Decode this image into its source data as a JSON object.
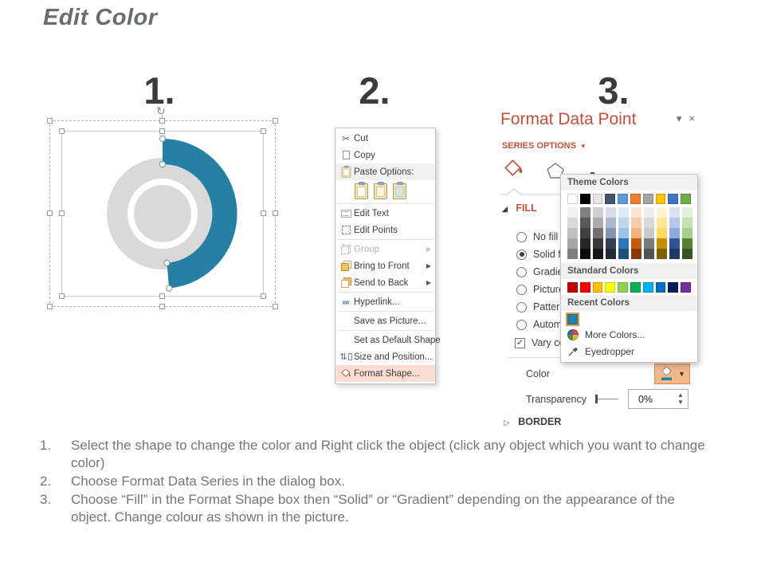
{
  "title": "Edit Color",
  "steps": {
    "n1": "1.",
    "n2": "2.",
    "n3": "3."
  },
  "icons": {
    "rotate": "↻",
    "scissors": "✂",
    "submenu": "▶",
    "dropdown": "▾",
    "close": "×",
    "series_dropdown": "▼",
    "fill_expanded": "◢",
    "border_collapsed": "▷",
    "check": "✓",
    "spin_up": "▲",
    "spin_down": "▼",
    "hyperlink_glyph": "∞",
    "updown_glyph": "⇅",
    "button_dropdown": "▼"
  },
  "context_menu": {
    "items": [
      {
        "label": "Cut",
        "icon": "scissors-icon"
      },
      {
        "label": "Copy",
        "icon": "copy-icon"
      },
      {
        "label": "Paste Options:",
        "icon": "clipboard-icon"
      },
      {
        "label": "Edit Text",
        "icon": "edit-text-icon"
      },
      {
        "label": "Edit Points",
        "icon": "edit-points-icon"
      },
      {
        "label": "Group",
        "icon": "group-icon",
        "disabled": true,
        "submenu": true
      },
      {
        "label": "Bring to Front",
        "icon": "bring-to-front-icon",
        "submenu": true
      },
      {
        "label": "Send to Back",
        "icon": "send-to-back-icon",
        "submenu": true
      },
      {
        "label": "Hyperlink...",
        "icon": "hyperlink-icon"
      },
      {
        "label": "Save as Picture..."
      },
      {
        "label": "Set as Default Shape"
      },
      {
        "label": "Size and Position...",
        "icon": "size-position-icon"
      },
      {
        "label": "Format Shape...",
        "icon": "paint-bucket-icon",
        "highlighted": true
      }
    ]
  },
  "format_panel": {
    "title": "Format Data Point",
    "series_options": "SERIES OPTIONS",
    "fill_header": "FILL",
    "border_header": "BORDER",
    "options": [
      "No fill",
      "Solid fill",
      "Gradient fill",
      "Picture or texture fill",
      "Pattern fill",
      "Automatic"
    ],
    "selected_option": "Solid fill",
    "vary_label": "Vary colors by point",
    "vary_checked": true,
    "color_label": "Color",
    "transparency_label": "Transparency",
    "transparency_value": "0%"
  },
  "color_popup": {
    "theme_header": "Theme Colors",
    "standard_header": "Standard Colors",
    "recent_header": "Recent Colors",
    "more_colors_label": "More Colors...",
    "eyedropper_label": "Eyedropper",
    "theme_colors": [
      "#FFFFFF",
      "#000000",
      "#E7E6E6",
      "#44546A",
      "#5B9BD5",
      "#ED7D31",
      "#A5A5A5",
      "#FFC000",
      "#4472C4",
      "#70AD47"
    ],
    "theme_variants": [
      [
        "#F2F2F2",
        "#D9D9D9",
        "#BFBFBF",
        "#A6A6A6",
        "#808080"
      ],
      [
        "#808080",
        "#595959",
        "#404040",
        "#262626",
        "#0D0D0D"
      ],
      [
        "#D0CECE",
        "#AEAAAA",
        "#757171",
        "#3A3838",
        "#171616"
      ],
      [
        "#D6DCE5",
        "#ACB9CA",
        "#8497B0",
        "#333F50",
        "#222B35"
      ],
      [
        "#DEEBF7",
        "#BDD7EE",
        "#9DC3E6",
        "#2E75B6",
        "#1F4E79"
      ],
      [
        "#FBE5D6",
        "#F8CBAD",
        "#F4B183",
        "#C55A11",
        "#843C0C"
      ],
      [
        "#EDEDED",
        "#DBDBDB",
        "#C9C9C9",
        "#7B7B7B",
        "#525252"
      ],
      [
        "#FFF2CC",
        "#FFE699",
        "#FFD966",
        "#BF9000",
        "#7F6000"
      ],
      [
        "#D9E2F3",
        "#B4C7E7",
        "#8EAADB",
        "#2F5496",
        "#1F3864"
      ],
      [
        "#E2EFD9",
        "#C5E0B3",
        "#A8D08D",
        "#538135",
        "#385623"
      ]
    ],
    "standard_colors": [
      "#C00000",
      "#FF0000",
      "#FFC000",
      "#FFFF00",
      "#92D050",
      "#00B050",
      "#00B0F0",
      "#0070C0",
      "#002060",
      "#7030A0"
    ],
    "recent_colors": [
      "#2580A4"
    ]
  },
  "donut": {
    "accent_color": "#2580A4",
    "ring_color": "#D9D9D9"
  },
  "colors": {
    "panel_title_red": "#C0503C",
    "menu_highlight": "#FBDCD2",
    "color_button_bg": "#F4B88F",
    "color_button_border": "#DD8A55",
    "recent_selected_outline": "#E39A4D"
  },
  "instructions": [
    {
      "num": "1.",
      "text": "Select the shape to change the color and Right click the object (click any object which you want to change color)"
    },
    {
      "num": "2.",
      "text": "Choose Format Data Series in the dialog box."
    },
    {
      "num": "3.",
      "text": "Choose “Fill” in the Format Shape box then “Solid” or “Gradient” depending on the appearance of the object. Change colour as shown in the picture."
    }
  ]
}
